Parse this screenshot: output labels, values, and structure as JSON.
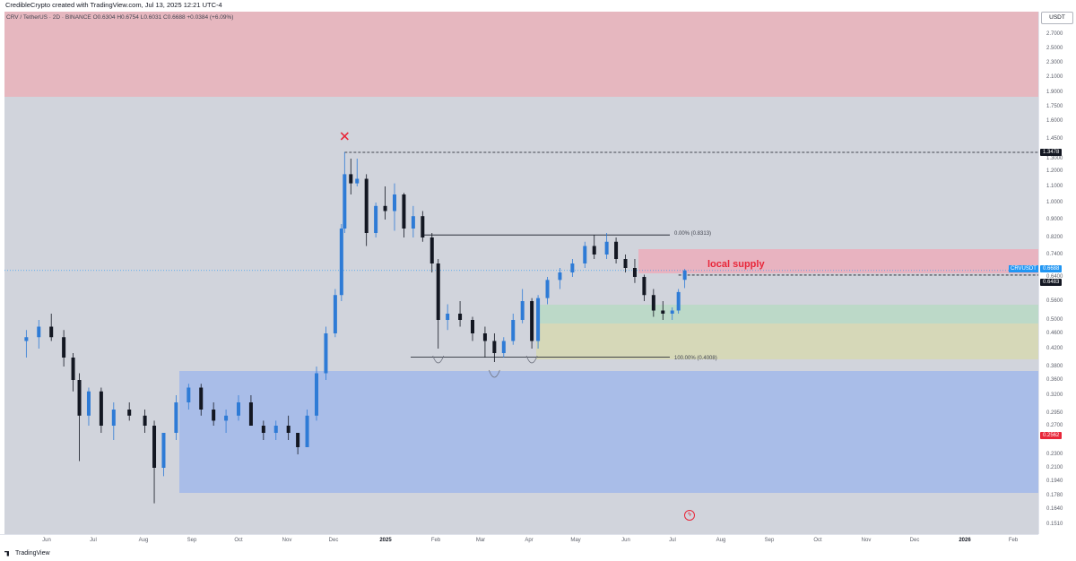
{
  "header": {
    "credit": "CredibleCrypto created with TradingView.com, Jul 13, 2025 12:21 UTC-4",
    "legend": "CRV / TetherUS · 2D · BINANCE",
    "ohlc": "O0.6304 H0.6754 L0.6031 C0.6688 +0.0384 (+6.09%)"
  },
  "footer": {
    "brand": "TradingView"
  },
  "chart_data": {
    "type": "candlestick",
    "symbol": "CRVUSDT",
    "unit": "USDT",
    "x_labels": [
      "Jun",
      "Jul",
      "Aug",
      "Sep",
      "Oct",
      "Nov",
      "Dec",
      "2025",
      "Feb",
      "Mar",
      "Apr",
      "May",
      "Jun",
      "Jul",
      "Aug",
      "Sep",
      "Oct",
      "Nov",
      "Dec",
      "2026",
      "Feb"
    ],
    "y_ticks": [
      "2.7000",
      "2.5000",
      "2.3000",
      "2.1000",
      "1.9000",
      "1.7500",
      "1.6000",
      "1.4500",
      "1.3000",
      "1.2000",
      "1.1000",
      "1.0000",
      "0.9000",
      "0.8200",
      "0.7400",
      "0.6400",
      "0.5600",
      "0.5000",
      "0.4600",
      "0.4200",
      "0.3800",
      "0.3600",
      "0.3200",
      "0.2950",
      "0.2700",
      "0.2300",
      "0.2100",
      "0.1940",
      "0.1780",
      "0.1640",
      "0.1510"
    ],
    "y_badges": [
      {
        "label": "1.3478",
        "value": 1.3478,
        "color": "#131722"
      },
      {
        "label": "CRVUSDT",
        "value": 0.6688,
        "color": "#2196f3"
      },
      {
        "label": "0.6688",
        "value": 0.6688,
        "color": "#2196f3"
      },
      {
        "label": "0.6483",
        "value": 0.6483,
        "color": "#131722"
      },
      {
        "label": "0.2562",
        "value": 0.2562,
        "color": "#e8273a"
      }
    ],
    "current_price": 0.6688,
    "annotations": {
      "local_supply": "local supply",
      "fib_top": "0.00% (0.8313)",
      "fib_bottom": "100.00% (0.4008)"
    },
    "levels": {
      "ath_dashed": 1.3478,
      "fib_0": 0.8313,
      "fib_100": 0.4008,
      "dashed_support": 0.6483
    },
    "zones": [
      {
        "name": "upper-red-zone",
        "from": 1.85,
        "to": 3.0,
        "color": "#e6a4ae"
      },
      {
        "name": "local-supply-zone",
        "from": 0.66,
        "to": 0.76,
        "color": "#f2a7b7"
      },
      {
        "name": "green-demand-zone",
        "from": 0.48,
        "to": 0.56,
        "color": "#b5e0c8"
      },
      {
        "name": "yellow-demand-zone",
        "from": 0.395,
        "to": 0.48,
        "color": "#e3e6b0"
      },
      {
        "name": "blue-range-zone",
        "from": 0.18,
        "to": 0.37,
        "color": "#8fb0ef"
      }
    ],
    "series": [
      {
        "date": "2024-05-15",
        "o": 0.44,
        "h": 0.47,
        "l": 0.4,
        "c": 0.45
      },
      {
        "date": "2024-05-23",
        "o": 0.45,
        "h": 0.5,
        "l": 0.42,
        "c": 0.48
      },
      {
        "date": "2024-05-31",
        "o": 0.48,
        "h": 0.52,
        "l": 0.44,
        "c": 0.45
      },
      {
        "date": "2024-06-08",
        "o": 0.45,
        "h": 0.47,
        "l": 0.38,
        "c": 0.4
      },
      {
        "date": "2024-06-14",
        "o": 0.4,
        "h": 0.41,
        "l": 0.33,
        "c": 0.36
      },
      {
        "date": "2024-06-18",
        "o": 0.36,
        "h": 0.37,
        "l": 0.22,
        "c": 0.29
      },
      {
        "date": "2024-06-24",
        "o": 0.29,
        "h": 0.34,
        "l": 0.27,
        "c": 0.33
      },
      {
        "date": "2024-07-02",
        "o": 0.33,
        "h": 0.34,
        "l": 0.26,
        "c": 0.27
      },
      {
        "date": "2024-07-10",
        "o": 0.27,
        "h": 0.31,
        "l": 0.25,
        "c": 0.3
      },
      {
        "date": "2024-07-20",
        "o": 0.3,
        "h": 0.31,
        "l": 0.28,
        "c": 0.29
      },
      {
        "date": "2024-07-30",
        "o": 0.29,
        "h": 0.3,
        "l": 0.26,
        "c": 0.27
      },
      {
        "date": "2024-08-05",
        "o": 0.27,
        "h": 0.28,
        "l": 0.17,
        "c": 0.21
      },
      {
        "date": "2024-08-11",
        "o": 0.21,
        "h": 0.26,
        "l": 0.2,
        "c": 0.26
      },
      {
        "date": "2024-08-19",
        "o": 0.26,
        "h": 0.32,
        "l": 0.25,
        "c": 0.31
      },
      {
        "date": "2024-08-27",
        "o": 0.31,
        "h": 0.35,
        "l": 0.3,
        "c": 0.34
      },
      {
        "date": "2024-09-04",
        "o": 0.34,
        "h": 0.35,
        "l": 0.29,
        "c": 0.3
      },
      {
        "date": "2024-09-12",
        "o": 0.3,
        "h": 0.31,
        "l": 0.27,
        "c": 0.28
      },
      {
        "date": "2024-09-20",
        "o": 0.28,
        "h": 0.3,
        "l": 0.26,
        "c": 0.29
      },
      {
        "date": "2024-09-28",
        "o": 0.29,
        "h": 0.32,
        "l": 0.28,
        "c": 0.31
      },
      {
        "date": "2024-10-06",
        "o": 0.31,
        "h": 0.32,
        "l": 0.27,
        "c": 0.27
      },
      {
        "date": "2024-10-14",
        "o": 0.27,
        "h": 0.28,
        "l": 0.25,
        "c": 0.26
      },
      {
        "date": "2024-10-22",
        "o": 0.26,
        "h": 0.28,
        "l": 0.25,
        "c": 0.27
      },
      {
        "date": "2024-10-30",
        "o": 0.27,
        "h": 0.29,
        "l": 0.25,
        "c": 0.26
      },
      {
        "date": "2024-11-05",
        "o": 0.26,
        "h": 0.26,
        "l": 0.23,
        "c": 0.24
      },
      {
        "date": "2024-11-11",
        "o": 0.24,
        "h": 0.3,
        "l": 0.24,
        "c": 0.29
      },
      {
        "date": "2024-11-17",
        "o": 0.29,
        "h": 0.38,
        "l": 0.28,
        "c": 0.37
      },
      {
        "date": "2024-11-23",
        "o": 0.37,
        "h": 0.48,
        "l": 0.36,
        "c": 0.46
      },
      {
        "date": "2024-11-29",
        "o": 0.46,
        "h": 0.6,
        "l": 0.45,
        "c": 0.58
      },
      {
        "date": "2024-12-03",
        "o": 0.58,
        "h": 0.88,
        "l": 0.56,
        "c": 0.86
      },
      {
        "date": "2024-12-05",
        "o": 0.86,
        "h": 1.35,
        "l": 0.84,
        "c": 1.18
      },
      {
        "date": "2024-12-09",
        "o": 1.18,
        "h": 1.3,
        "l": 1.05,
        "c": 1.12
      },
      {
        "date": "2024-12-13",
        "o": 1.12,
        "h": 1.3,
        "l": 1.1,
        "c": 1.15
      },
      {
        "date": "2024-12-19",
        "o": 1.15,
        "h": 1.18,
        "l": 0.78,
        "c": 0.84
      },
      {
        "date": "2024-12-25",
        "o": 0.84,
        "h": 1.0,
        "l": 0.82,
        "c": 0.98
      },
      {
        "date": "2024-12-31",
        "o": 0.98,
        "h": 1.1,
        "l": 0.9,
        "c": 0.95
      },
      {
        "date": "2025-01-06",
        "o": 0.95,
        "h": 1.12,
        "l": 0.85,
        "c": 1.05
      },
      {
        "date": "2025-01-12",
        "o": 1.05,
        "h": 1.06,
        "l": 0.82,
        "c": 0.86
      },
      {
        "date": "2025-01-18",
        "o": 0.86,
        "h": 0.98,
        "l": 0.82,
        "c": 0.92
      },
      {
        "date": "2025-01-24",
        "o": 0.92,
        "h": 0.95,
        "l": 0.8,
        "c": 0.82
      },
      {
        "date": "2025-01-30",
        "o": 0.82,
        "h": 0.84,
        "l": 0.66,
        "c": 0.7
      },
      {
        "date": "2025-02-03",
        "o": 0.7,
        "h": 0.72,
        "l": 0.42,
        "c": 0.5
      },
      {
        "date": "2025-02-09",
        "o": 0.5,
        "h": 0.55,
        "l": 0.47,
        "c": 0.52
      },
      {
        "date": "2025-02-17",
        "o": 0.52,
        "h": 0.56,
        "l": 0.48,
        "c": 0.5
      },
      {
        "date": "2025-02-25",
        "o": 0.5,
        "h": 0.51,
        "l": 0.44,
        "c": 0.46
      },
      {
        "date": "2025-03-05",
        "o": 0.46,
        "h": 0.48,
        "l": 0.4,
        "c": 0.44
      },
      {
        "date": "2025-03-11",
        "o": 0.44,
        "h": 0.46,
        "l": 0.39,
        "c": 0.41
      },
      {
        "date": "2025-03-17",
        "o": 0.41,
        "h": 0.45,
        "l": 0.4,
        "c": 0.44
      },
      {
        "date": "2025-03-23",
        "o": 0.44,
        "h": 0.52,
        "l": 0.43,
        "c": 0.5
      },
      {
        "date": "2025-03-29",
        "o": 0.5,
        "h": 0.6,
        "l": 0.49,
        "c": 0.56
      },
      {
        "date": "2025-04-04",
        "o": 0.56,
        "h": 0.57,
        "l": 0.42,
        "c": 0.44
      },
      {
        "date": "2025-04-08",
        "o": 0.44,
        "h": 0.58,
        "l": 0.42,
        "c": 0.57
      },
      {
        "date": "2025-04-14",
        "o": 0.57,
        "h": 0.64,
        "l": 0.55,
        "c": 0.63
      },
      {
        "date": "2025-04-22",
        "o": 0.63,
        "h": 0.68,
        "l": 0.6,
        "c": 0.66
      },
      {
        "date": "2025-04-30",
        "o": 0.66,
        "h": 0.72,
        "l": 0.64,
        "c": 0.7
      },
      {
        "date": "2025-05-08",
        "o": 0.7,
        "h": 0.8,
        "l": 0.68,
        "c": 0.78
      },
      {
        "date": "2025-05-14",
        "o": 0.78,
        "h": 0.83,
        "l": 0.72,
        "c": 0.74
      },
      {
        "date": "2025-05-22",
        "o": 0.74,
        "h": 0.84,
        "l": 0.72,
        "c": 0.8
      },
      {
        "date": "2025-05-28",
        "o": 0.8,
        "h": 0.82,
        "l": 0.7,
        "c": 0.72
      },
      {
        "date": "2025-06-03",
        "o": 0.72,
        "h": 0.74,
        "l": 0.66,
        "c": 0.68
      },
      {
        "date": "2025-06-09",
        "o": 0.68,
        "h": 0.72,
        "l": 0.62,
        "c": 0.64
      },
      {
        "date": "2025-06-15",
        "o": 0.64,
        "h": 0.65,
        "l": 0.56,
        "c": 0.58
      },
      {
        "date": "2025-06-21",
        "o": 0.58,
        "h": 0.6,
        "l": 0.51,
        "c": 0.53
      },
      {
        "date": "2025-06-27",
        "o": 0.53,
        "h": 0.56,
        "l": 0.5,
        "c": 0.52
      },
      {
        "date": "2025-07-03",
        "o": 0.52,
        "h": 0.54,
        "l": 0.5,
        "c": 0.53
      },
      {
        "date": "2025-07-07",
        "o": 0.53,
        "h": 0.6,
        "l": 0.52,
        "c": 0.59
      },
      {
        "date": "2025-07-11",
        "o": 0.6304,
        "h": 0.6754,
        "l": 0.6031,
        "c": 0.6688
      }
    ]
  }
}
